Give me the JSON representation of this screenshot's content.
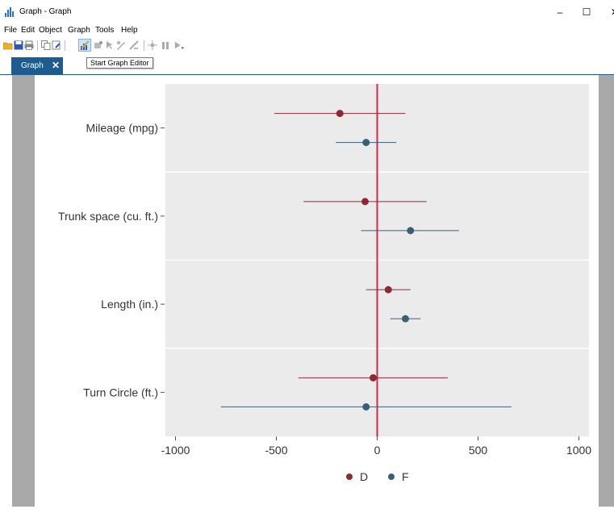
{
  "window": {
    "title": "Graph - Graph",
    "controls": {
      "minimize": "–",
      "maximize": "☐",
      "close": "✕"
    }
  },
  "menu": [
    "File",
    "Edit",
    "Object",
    "Graph",
    "Tools",
    "Help"
  ],
  "toolbar": {
    "buttons": [
      "open-icon",
      "save-icon",
      "print-icon",
      "copy-icon",
      "save-as-icon",
      "graph-editor-icon",
      "recorder-icon",
      "pointer-icon",
      "add-text-icon",
      "add-line-icon",
      "add-marker-icon",
      "pause-icon",
      "play-icon"
    ],
    "tooltip": "Start Graph Editor"
  },
  "tab": {
    "label": "Graph",
    "close": "✕"
  },
  "colors": {
    "series_D": "#8c2a32",
    "series_F": "#3c5f78",
    "zero_line": "#d12a44",
    "plot_bg": "#ebebeb",
    "tab": "#1d5b91"
  },
  "chart_data": {
    "type": "scatter",
    "style": "coefficient plot with horizontal confidence intervals",
    "categories": [
      "Mileage (mpg)",
      "Trunk space (cu. ft.)",
      "Length (in.)",
      "Turn Circle (ft.)"
    ],
    "xlim": [
      -1050,
      1050
    ],
    "xticks": [
      -1000,
      -500,
      0,
      500,
      1000
    ],
    "xtick_labels": [
      "-1000",
      "-500",
      "0",
      "500",
      "1000"
    ],
    "reference_line": 0,
    "series": [
      {
        "name": "D",
        "color": "#8c2a32",
        "points": [
          {
            "category": "Mileage (mpg)",
            "estimate": -185,
            "lower": -510,
            "upper": 140
          },
          {
            "category": "Trunk space (cu. ft.)",
            "estimate": -60,
            "lower": -365,
            "upper": 245
          },
          {
            "category": "Length (in.)",
            "estimate": 55,
            "lower": -55,
            "upper": 165
          },
          {
            "category": "Turn Circle (ft.)",
            "estimate": -20,
            "lower": -390,
            "upper": 350
          }
        ]
      },
      {
        "name": "F",
        "color": "#3c5f78",
        "points": [
          {
            "category": "Mileage (mpg)",
            "estimate": -55,
            "lower": -205,
            "upper": 95
          },
          {
            "category": "Trunk space (cu. ft.)",
            "estimate": 165,
            "lower": -80,
            "upper": 405
          },
          {
            "category": "Length (in.)",
            "estimate": 140,
            "lower": 65,
            "upper": 215
          },
          {
            "category": "Turn Circle (ft.)",
            "estimate": -55,
            "lower": -775,
            "upper": 665
          }
        ]
      }
    ],
    "legend": {
      "entries": [
        "D",
        "F"
      ],
      "position": "bottom"
    },
    "grid": false
  }
}
